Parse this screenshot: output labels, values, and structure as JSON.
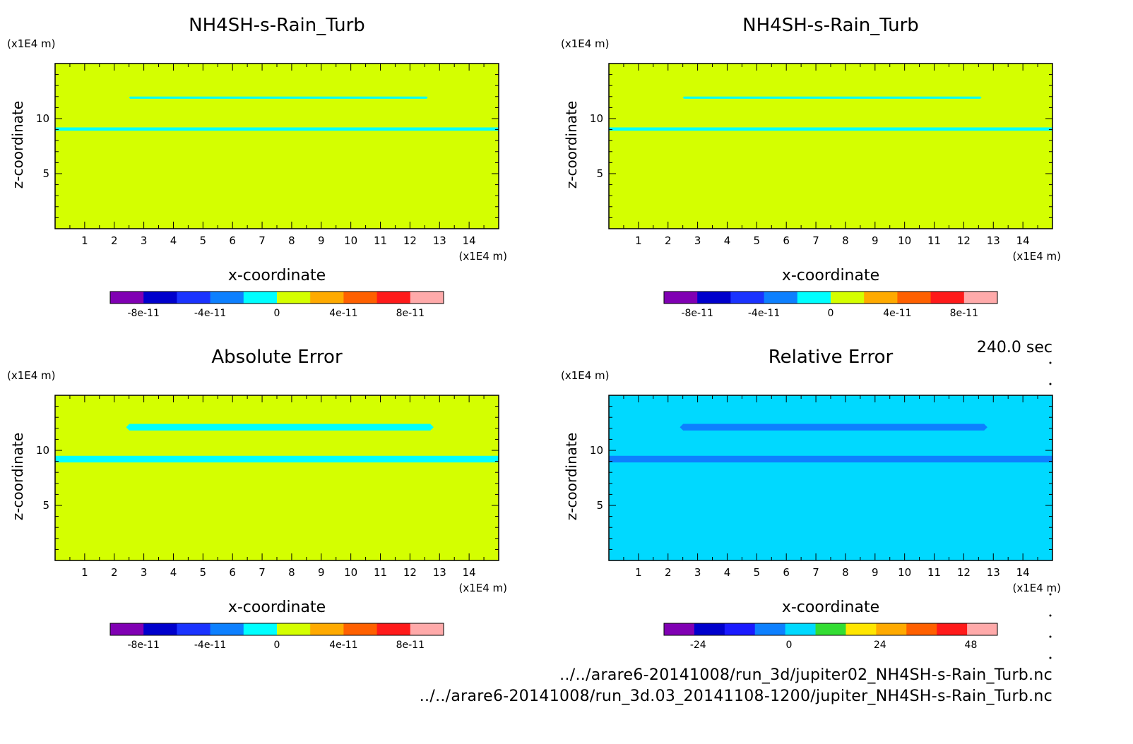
{
  "time_label": "240.0 sec",
  "files": [
    "../../arare6-20141008/run_3d/jupiter02_NH4SH-s-Rain_Turb.nc",
    "../../arare6-20141008/run_3d.03_20141108-1200/jupiter_NH4SH-s-Rain_Turb.nc"
  ],
  "colors": {
    "background": "#d4ff00",
    "band": "#00ffff",
    "relative_background": "#00d9ff",
    "relative_band": "#0d80ff"
  },
  "chart_data": [
    {
      "type": "heatmap",
      "title": "NH4SH-s-Rain_Turb",
      "xlabel": "x-coordinate",
      "ylabel": "z-coordinate",
      "x_unit": "(x1E4 m)",
      "y_unit": "(x1E4 m)",
      "xlim": [
        0,
        15
      ],
      "ylim": [
        0,
        15
      ],
      "xticks": [
        1,
        2,
        3,
        4,
        5,
        6,
        7,
        8,
        9,
        10,
        11,
        12,
        13,
        14
      ],
      "yticks": [
        5,
        10
      ],
      "fill": "background",
      "bands": [
        {
          "x": [
            2.5,
            12.6
          ],
          "z": [
            11.8,
            12.0
          ],
          "color": "band"
        },
        {
          "x": [
            0,
            15
          ],
          "z": [
            8.9,
            9.2
          ],
          "color": "band"
        }
      ],
      "colorbar": {
        "colors": [
          "#8000b3",
          "#0000cc",
          "#1a33ff",
          "#0d80ff",
          "#00ffff",
          "#d4ff00",
          "#ffaa00",
          "#ff6000",
          "#ff1a1a",
          "#ffaaaa"
        ],
        "tick_values": [
          -8e-11,
          -4e-11,
          0,
          4e-11,
          8e-11
        ],
        "tick_labels": [
          "-8e-11",
          "-4e-11",
          "0",
          "4e-11",
          "8e-11"
        ],
        "range": [
          -1e-10,
          1e-10
        ]
      }
    },
    {
      "type": "heatmap",
      "title": "NH4SH-s-Rain_Turb",
      "xlabel": "x-coordinate",
      "ylabel": "z-coordinate",
      "x_unit": "(x1E4 m)",
      "y_unit": "(x1E4 m)",
      "xlim": [
        0,
        15
      ],
      "ylim": [
        0,
        15
      ],
      "xticks": [
        1,
        2,
        3,
        4,
        5,
        6,
        7,
        8,
        9,
        10,
        11,
        12,
        13,
        14
      ],
      "yticks": [
        5,
        10
      ],
      "fill": "background",
      "bands": [
        {
          "x": [
            2.5,
            12.6
          ],
          "z": [
            11.8,
            12.0
          ],
          "color": "band"
        },
        {
          "x": [
            0,
            15
          ],
          "z": [
            8.9,
            9.2
          ],
          "color": "band"
        }
      ],
      "colorbar": {
        "colors": [
          "#8000b3",
          "#0000cc",
          "#1a33ff",
          "#0d80ff",
          "#00ffff",
          "#d4ff00",
          "#ffaa00",
          "#ff6000",
          "#ff1a1a",
          "#ffaaaa"
        ],
        "tick_values": [
          -8e-11,
          -4e-11,
          0,
          4e-11,
          8e-11
        ],
        "tick_labels": [
          "-8e-11",
          "-4e-11",
          "0",
          "4e-11",
          "8e-11"
        ],
        "range": [
          -1e-10,
          1e-10
        ]
      }
    },
    {
      "type": "heatmap",
      "title": "Absolute Error",
      "xlabel": "x-coordinate",
      "ylabel": "z-coordinate",
      "x_unit": "(x1E4 m)",
      "y_unit": "(x1E4 m)",
      "xlim": [
        0,
        15
      ],
      "ylim": [
        0,
        15
      ],
      "xticks": [
        1,
        2,
        3,
        4,
        5,
        6,
        7,
        8,
        9,
        10,
        11,
        12,
        13,
        14
      ],
      "yticks": [
        5,
        10
      ],
      "fill": "background",
      "bands": [
        {
          "x": [
            2.4,
            12.8
          ],
          "z": [
            11.8,
            12.4
          ],
          "color": "band"
        },
        {
          "x": [
            0,
            15
          ],
          "z": [
            8.9,
            9.5
          ],
          "color": "band"
        }
      ],
      "colorbar": {
        "colors": [
          "#8000b3",
          "#0000cc",
          "#1a33ff",
          "#0d80ff",
          "#00ffff",
          "#d4ff00",
          "#ffaa00",
          "#ff6000",
          "#ff1a1a",
          "#ffaaaa"
        ],
        "tick_values": [
          -8e-11,
          -4e-11,
          0,
          4e-11,
          8e-11
        ],
        "tick_labels": [
          "-8e-11",
          "-4e-11",
          "0",
          "4e-11",
          "8e-11"
        ],
        "range": [
          -1e-10,
          1e-10
        ]
      }
    },
    {
      "type": "heatmap",
      "title": "Relative Error",
      "xlabel": "x-coordinate",
      "ylabel": "z-coordinate",
      "x_unit": "(x1E4 m)",
      "y_unit": "(x1E4 m)",
      "xlim": [
        0,
        15
      ],
      "ylim": [
        0,
        15
      ],
      "xticks": [
        1,
        2,
        3,
        4,
        5,
        6,
        7,
        8,
        9,
        10,
        11,
        12,
        13,
        14
      ],
      "yticks": [
        5,
        10
      ],
      "fill": "relative_background",
      "bands": [
        {
          "x": [
            2.4,
            12.8
          ],
          "z": [
            11.8,
            12.4
          ],
          "color": "relative_band"
        },
        {
          "x": [
            0,
            15
          ],
          "z": [
            8.9,
            9.5
          ],
          "color": "relative_band"
        }
      ],
      "colorbar": {
        "colors": [
          "#8000b3",
          "#0000cc",
          "#1a1aff",
          "#0d80ff",
          "#00d9ff",
          "#33dd33",
          "#ffe600",
          "#ffaa00",
          "#ff6000",
          "#ff1a1a",
          "#ffaaaa"
        ],
        "tick_values": [
          -24,
          0,
          24,
          48
        ],
        "tick_labels": [
          "-24",
          "0",
          "24",
          "48"
        ],
        "range": [
          -33,
          55
        ]
      }
    }
  ]
}
